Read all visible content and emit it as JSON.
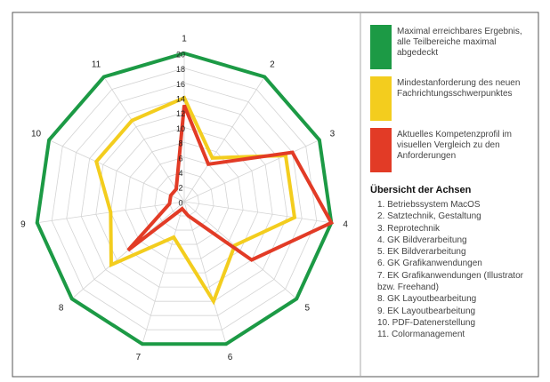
{
  "chart_data": {
    "type": "radar",
    "categories": [
      "1",
      "2",
      "3",
      "4",
      "5",
      "6",
      "7",
      "8",
      "9",
      "10",
      "11"
    ],
    "ylim": [
      0,
      20
    ],
    "yticks": [
      0,
      2,
      4,
      6,
      8,
      10,
      12,
      14,
      16,
      18,
      20
    ],
    "grid": true,
    "legend": "right",
    "series": [
      {
        "name": "Maximal erreichbares Ergebnis, alle Teilbereiche maximal abgedeckt",
        "color": "#1c9a45",
        "values": [
          20,
          20,
          20,
          20,
          20,
          20,
          20,
          20,
          20,
          20,
          20
        ]
      },
      {
        "name": "Mindestanforderung des neuen Fachrichtungsschwerpunktes",
        "color": "#f3cd1e",
        "values": [
          14,
          7,
          15,
          15,
          9,
          14,
          5,
          13,
          10,
          13,
          13
        ]
      },
      {
        "name": "Aktuelles Kompetenzprofil im visuellen Vergleich zu den Anforderungen",
        "color": "#e23b26",
        "values": [
          13,
          6,
          16,
          20,
          12,
          2,
          1,
          10,
          2,
          2,
          2
        ]
      }
    ]
  },
  "axis_overview": {
    "title": "Übersicht der Achsen",
    "items": [
      "1. Betriebssystem MacOS",
      "2. Satztechnik, Gestaltung",
      "3. Reprotechnik",
      "4. GK Bildverarbeitung",
      "5. EK Bildverarbeitung",
      "6. GK Grafikanwendungen",
      "7. EK Grafikanwendungen (Illustrator bzw. Freehand)",
      "8. GK Layoutbearbeitung",
      "9. EK Layoutbearbeitung",
      "10. PDF-Datenerstellung",
      "11. Colormanagement"
    ]
  }
}
